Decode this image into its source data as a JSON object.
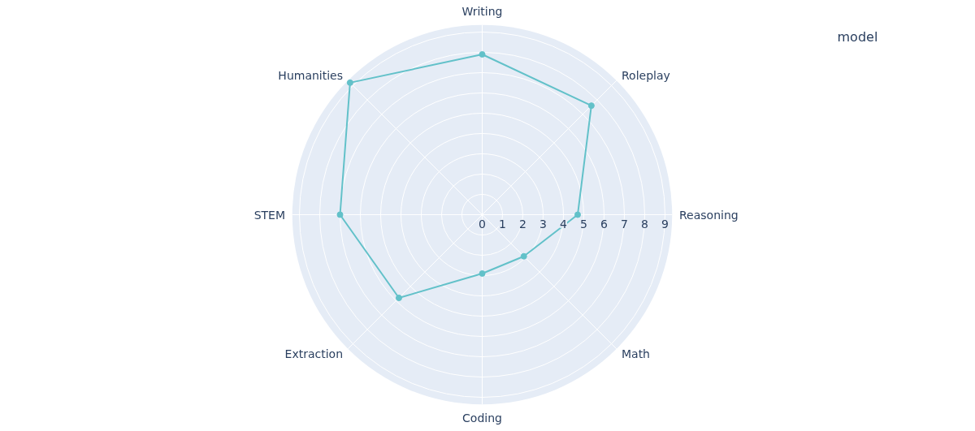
{
  "chart_data": {
    "type": "radar",
    "categories": [
      "Writing",
      "Roleplay",
      "Reasoning",
      "Math",
      "Coding",
      "Extraction",
      "STEM",
      "Humanities"
    ],
    "series": [
      {
        "color": "#62c1c9",
        "values": [
          7.9,
          7.6,
          4.7,
          2.9,
          2.9,
          5.8,
          7.0,
          9.2
        ]
      }
    ],
    "ylim": [
      0,
      9.35
    ],
    "yticks": [
      0,
      1,
      2,
      3,
      4,
      5,
      6,
      7,
      8,
      9
    ],
    "grid": true,
    "marker": "circle",
    "line_style": "solid",
    "legend_title": "model"
  }
}
